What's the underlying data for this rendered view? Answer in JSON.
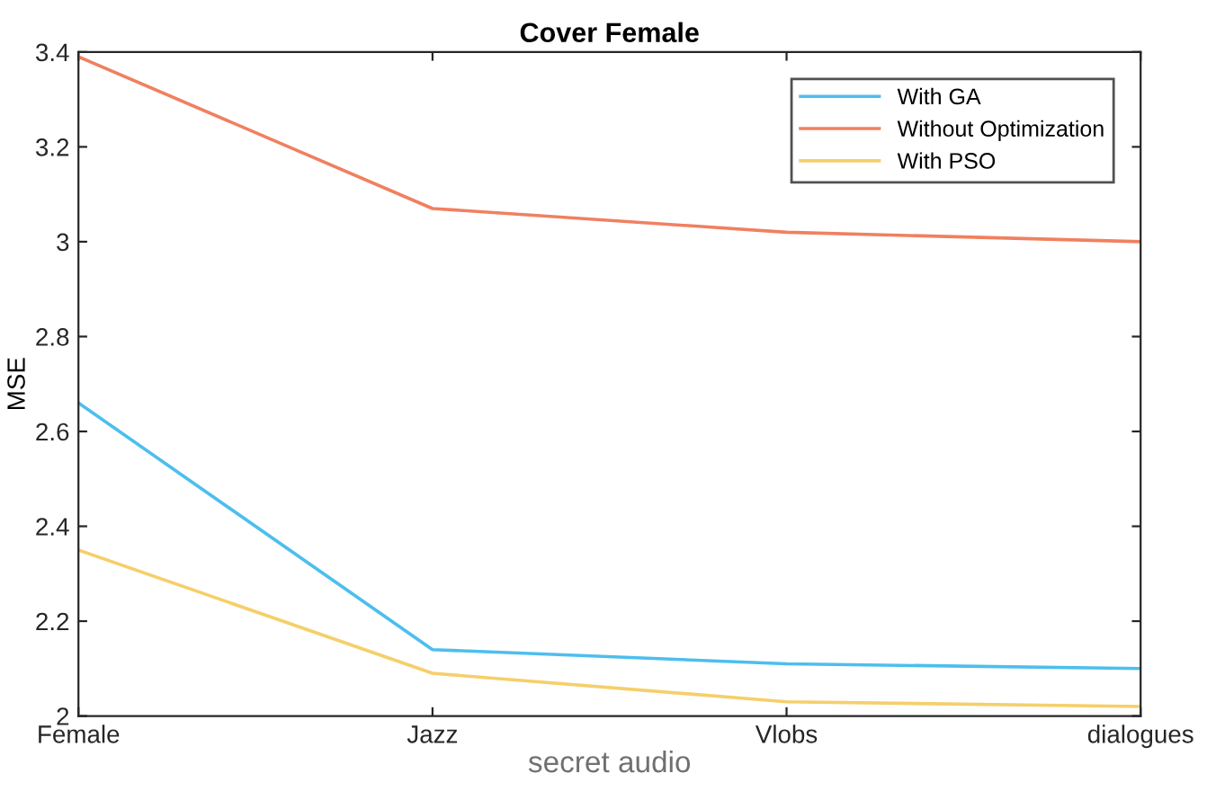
{
  "chart_data": {
    "type": "line",
    "title": "Cover Female",
    "xlabel": "secret audio",
    "ylabel": "MSE",
    "categories": [
      "Female",
      "Jazz",
      "Vlobs",
      "dialogues"
    ],
    "series": [
      {
        "name": "With GA",
        "color": "#4dbeee",
        "values": [
          2.66,
          2.14,
          2.11,
          2.1
        ]
      },
      {
        "name": "Without Optimization",
        "color": "#f08060",
        "values": [
          3.39,
          3.07,
          3.02,
          3.0
        ]
      },
      {
        "name": "With PSO",
        "color": "#f5cf6a",
        "values": [
          2.35,
          2.09,
          2.03,
          2.02
        ]
      }
    ],
    "ylim": [
      2,
      3.4
    ],
    "yticks": [
      2,
      2.2,
      2.4,
      2.6,
      2.8,
      3,
      3.2,
      3.4
    ],
    "grid": false,
    "legend": "top right",
    "marker": "none",
    "line_style": "solid"
  }
}
